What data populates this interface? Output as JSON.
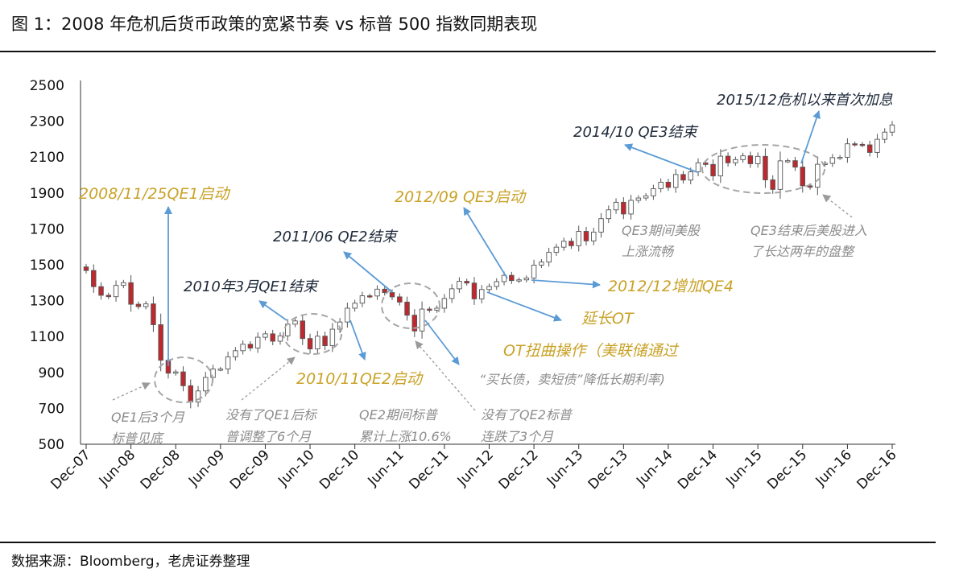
{
  "title": "图 1：2008 年危机后货币政策的宽紧节奏 vs 标普 500 指数同期表现",
  "source": "数据来源：Bloomberg，老虎证券整理",
  "colors": {
    "up_fill": "#ffffff",
    "down_fill": "#c0282d",
    "candle_edge": "#555555",
    "arrow": "#5b9bd5",
    "gold_text": "#c9a227",
    "dark_text": "#1f2a3a",
    "gray_text": "#8c8c8c",
    "ellipse": "#a6a6a6"
  },
  "chart_data": {
    "type": "candlestick",
    "x_labels": [
      "Dec-07",
      "Jun-08",
      "Dec-08",
      "Jun-09",
      "Dec-09",
      "Jun-10",
      "Dec-10",
      "Jun-11",
      "Dec-11",
      "Jun-12",
      "Dec-12",
      "Jun-13",
      "Dec-13",
      "Jun-14",
      "Dec-14",
      "Jun-15",
      "Dec-15",
      "Jun-16",
      "Dec-16"
    ],
    "y_ticks": [
      500,
      700,
      900,
      1100,
      1300,
      1500,
      1700,
      1900,
      2100,
      2300,
      2500
    ],
    "ylim": [
      500,
      2500
    ],
    "grid": false,
    "monthly_close": [
      1468,
      1378,
      1330,
      1322,
      1385,
      1400,
      1280,
      1267,
      1282,
      1166,
      968,
      896,
      903,
      826,
      735,
      797,
      872,
      919,
      919,
      987,
      1021,
      1057,
      1036,
      1096,
      1115,
      1074,
      1104,
      1169,
      1187,
      1089,
      1031,
      1102,
      1049,
      1141,
      1181,
      1258,
      1286,
      1327,
      1326,
      1364,
      1345,
      1321,
      1292,
      1219,
      1131,
      1253,
      1247,
      1258,
      1312,
      1366,
      1408,
      1398,
      1310,
      1362,
      1379,
      1406,
      1441,
      1412,
      1416,
      1426,
      1498,
      1515,
      1569,
      1598,
      1631,
      1606,
      1686,
      1633,
      1682,
      1757,
      1806,
      1848,
      1783,
      1859,
      1872,
      1884,
      1924,
      1960,
      1931,
      2003,
      1972,
      2018,
      2068,
      2059,
      1995,
      2105,
      2068,
      2086,
      2107,
      2063,
      2104,
      1973,
      1920,
      2079,
      2080,
      2044,
      1940,
      1932,
      2060,
      2065,
      2097,
      2099,
      2174,
      2171,
      2168,
      2126,
      2199,
      2239,
      2279
    ],
    "annotations": [
      {
        "text": "2008/11/25QE1启动",
        "style": "gold"
      },
      {
        "text": "2010年3月QE1结束",
        "style": "dark"
      },
      {
        "text": "2010/11QE2启动",
        "style": "gold"
      },
      {
        "text": "2011/06 QE2结束",
        "style": "dark"
      },
      {
        "text": "2012/09 QE3启动",
        "style": "gold"
      },
      {
        "text": "2012/12增加QE4",
        "style": "gold"
      },
      {
        "text": "延长OT",
        "style": "gold"
      },
      {
        "text": "OT扭曲操作（美联储通过",
        "style": "gold"
      },
      {
        "text": "“买长债，卖短债”降低长期利率)",
        "style": "gray"
      },
      {
        "text": "2014/10 QE3结束",
        "style": "dark"
      },
      {
        "text": "2015/12危机以来首次加息",
        "style": "dark"
      },
      {
        "text": "QE1后3个月",
        "style": "gray"
      },
      {
        "text": "标普见底",
        "style": "gray"
      },
      {
        "text": "没有了QE1后标",
        "style": "gray"
      },
      {
        "text": "普调整了6个月",
        "style": "gray"
      },
      {
        "text": "QE2期间标普",
        "style": "gray"
      },
      {
        "text": "累计上涨10.6%",
        "style": "gray"
      },
      {
        "text": "没有了QE2标普",
        "style": "gray"
      },
      {
        "text": "连跌了3个月",
        "style": "gray"
      },
      {
        "text": "QE3期间美股",
        "style": "gray"
      },
      {
        "text": "上涨流畅",
        "style": "gray"
      },
      {
        "text": "QE3结束后美股进入",
        "style": "gray"
      },
      {
        "text": "了长达两年的盘整",
        "style": "gray"
      }
    ]
  }
}
